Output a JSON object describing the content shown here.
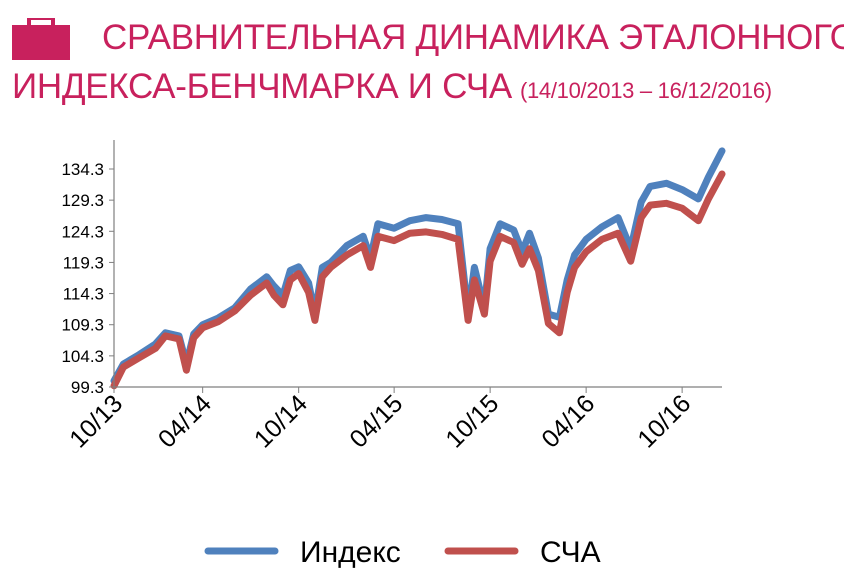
{
  "header": {
    "title_line1": "СРАВНИТЕЛЬНАЯ ДИНАМИКА ЭТАЛОННОГО",
    "title_line2": "ИНДЕКСА-БЕНЧМАРКА И СЧА",
    "period": "(14/10/2013 – 16/12/2016)",
    "icon": "briefcase-icon",
    "accent_color": "#c8215d"
  },
  "chart_data": {
    "type": "line",
    "title": "СРАВНИТЕЛЬНАЯ ДИНАМИКА ЭТАЛОННОГО ИНДЕКСА-БЕНЧМАРКА И СЧА (14/10/2013 – 16/12/2016)",
    "xlabel": "",
    "ylabel": "",
    "x_range": [
      "2013-10-14",
      "2016-12-16"
    ],
    "ylim": [
      99.3,
      137.5
    ],
    "y_ticks": [
      "99.3",
      "104.3",
      "109.3",
      "114.3",
      "119.3",
      "124.3",
      "129.3",
      "134.3"
    ],
    "x_ticks": [
      {
        "date": "2013-10-01",
        "label": "10/13"
      },
      {
        "date": "2014-04-01",
        "label": "04/14"
      },
      {
        "date": "2014-10-01",
        "label": "10/14"
      },
      {
        "date": "2015-04-01",
        "label": "04/15"
      },
      {
        "date": "2015-10-01",
        "label": "10/15"
      },
      {
        "date": "2016-04-01",
        "label": "04/16"
      },
      {
        "date": "2016-10-01",
        "label": "10/16"
      }
    ],
    "grid": false,
    "legend_position": "bottom",
    "series": [
      {
        "name": "Индекс",
        "color": "#4f81bd",
        "points": [
          [
            "2013-10-14",
            100.3
          ],
          [
            "2013-11-01",
            103.0
          ],
          [
            "2013-12-01",
            104.5
          ],
          [
            "2014-01-01",
            106.2
          ],
          [
            "2014-01-20",
            108.0
          ],
          [
            "2014-02-15",
            107.5
          ],
          [
            "2014-03-01",
            103.0
          ],
          [
            "2014-03-15",
            107.8
          ],
          [
            "2014-04-01",
            109.3
          ],
          [
            "2014-05-01",
            110.4
          ],
          [
            "2014-06-01",
            112.0
          ],
          [
            "2014-07-01",
            115.0
          ],
          [
            "2014-08-01",
            117.0
          ],
          [
            "2014-08-15",
            115.5
          ],
          [
            "2014-09-01",
            114.0
          ],
          [
            "2014-09-15",
            118.0
          ],
          [
            "2014-10-01",
            118.6
          ],
          [
            "2014-10-20",
            116.0
          ],
          [
            "2014-11-01",
            111.0
          ],
          [
            "2014-11-15",
            118.5
          ],
          [
            "2014-12-01",
            119.3
          ],
          [
            "2015-01-01",
            122.0
          ],
          [
            "2015-02-01",
            123.5
          ],
          [
            "2015-02-15",
            120.0
          ],
          [
            "2015-03-01",
            125.5
          ],
          [
            "2015-04-01",
            124.8
          ],
          [
            "2015-05-01",
            126.0
          ],
          [
            "2015-06-01",
            126.5
          ],
          [
            "2015-07-01",
            126.2
          ],
          [
            "2015-08-01",
            125.5
          ],
          [
            "2015-08-20",
            111.0
          ],
          [
            "2015-09-01",
            118.5
          ],
          [
            "2015-09-20",
            112.0
          ],
          [
            "2015-10-01",
            121.5
          ],
          [
            "2015-10-20",
            125.5
          ],
          [
            "2015-11-15",
            124.5
          ],
          [
            "2015-12-01",
            121.0
          ],
          [
            "2015-12-15",
            124.0
          ],
          [
            "2016-01-01",
            120.0
          ],
          [
            "2016-01-20",
            111.0
          ],
          [
            "2016-02-10",
            110.5
          ],
          [
            "2016-02-25",
            116.5
          ],
          [
            "2016-03-10",
            120.5
          ],
          [
            "2016-04-01",
            123.0
          ],
          [
            "2016-05-01",
            125.0
          ],
          [
            "2016-06-01",
            126.5
          ],
          [
            "2016-06-25",
            121.5
          ],
          [
            "2016-07-15",
            129.0
          ],
          [
            "2016-08-01",
            131.5
          ],
          [
            "2016-09-01",
            132.0
          ],
          [
            "2016-10-01",
            131.0
          ],
          [
            "2016-11-01",
            129.5
          ],
          [
            "2016-11-20",
            133.0
          ],
          [
            "2016-12-16",
            137.2
          ]
        ]
      },
      {
        "name": "СЧА",
        "color": "#c0504d",
        "points": [
          [
            "2013-10-14",
            99.5
          ],
          [
            "2013-11-01",
            102.5
          ],
          [
            "2013-12-01",
            104.0
          ],
          [
            "2014-01-01",
            105.5
          ],
          [
            "2014-01-20",
            107.5
          ],
          [
            "2014-02-15",
            107.0
          ],
          [
            "2014-03-01",
            102.0
          ],
          [
            "2014-03-15",
            107.2
          ],
          [
            "2014-04-01",
            108.8
          ],
          [
            "2014-05-01",
            109.8
          ],
          [
            "2014-06-01",
            111.5
          ],
          [
            "2014-07-01",
            114.0
          ],
          [
            "2014-08-01",
            116.0
          ],
          [
            "2014-08-15",
            114.0
          ],
          [
            "2014-09-01",
            112.5
          ],
          [
            "2014-09-15",
            116.5
          ],
          [
            "2014-10-01",
            117.5
          ],
          [
            "2014-10-20",
            114.5
          ],
          [
            "2014-11-01",
            110.0
          ],
          [
            "2014-11-15",
            117.0
          ],
          [
            "2014-12-01",
            118.5
          ],
          [
            "2015-01-01",
            120.5
          ],
          [
            "2015-02-01",
            122.0
          ],
          [
            "2015-02-15",
            118.5
          ],
          [
            "2015-03-01",
            123.5
          ],
          [
            "2015-04-01",
            122.8
          ],
          [
            "2015-05-01",
            124.0
          ],
          [
            "2015-06-01",
            124.2
          ],
          [
            "2015-07-01",
            123.8
          ],
          [
            "2015-08-01",
            123.0
          ],
          [
            "2015-08-20",
            110.0
          ],
          [
            "2015-09-01",
            116.5
          ],
          [
            "2015-09-20",
            111.0
          ],
          [
            "2015-10-01",
            119.5
          ],
          [
            "2015-10-20",
            123.5
          ],
          [
            "2015-11-15",
            122.5
          ],
          [
            "2015-12-01",
            119.0
          ],
          [
            "2015-12-15",
            121.5
          ],
          [
            "2016-01-01",
            118.0
          ],
          [
            "2016-01-20",
            109.5
          ],
          [
            "2016-02-10",
            108.0
          ],
          [
            "2016-02-25",
            114.5
          ],
          [
            "2016-03-10",
            118.5
          ],
          [
            "2016-04-01",
            121.0
          ],
          [
            "2016-05-01",
            123.0
          ],
          [
            "2016-06-01",
            124.0
          ],
          [
            "2016-06-25",
            119.5
          ],
          [
            "2016-07-15",
            126.5
          ],
          [
            "2016-08-01",
            128.5
          ],
          [
            "2016-09-01",
            128.8
          ],
          [
            "2016-10-01",
            128.0
          ],
          [
            "2016-11-01",
            126.0
          ],
          [
            "2016-11-20",
            129.5
          ],
          [
            "2016-12-16",
            133.5
          ]
        ]
      }
    ]
  }
}
